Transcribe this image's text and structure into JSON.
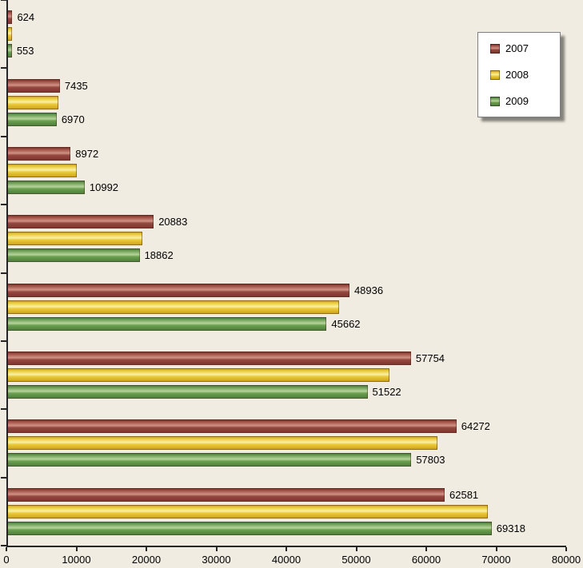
{
  "chart_data": {
    "type": "bar",
    "orientation": "horizontal",
    "grouped": true,
    "title": "",
    "xlabel": "",
    "ylabel": "",
    "xlim": [
      0,
      80000
    ],
    "x_ticks": [
      0,
      10000,
      20000,
      30000,
      40000,
      50000,
      60000,
      70000,
      80000
    ],
    "grid": false,
    "legend_position": "top-right",
    "categories": [
      "",
      "",
      "",
      "",
      "",
      "",
      "",
      ""
    ],
    "series": [
      {
        "name": "2007",
        "color": "#9a4a41",
        "labels_shown": true,
        "values": [
          624,
          7435,
          8972,
          20883,
          48936,
          57754,
          64272,
          62581
        ]
      },
      {
        "name": "2008",
        "color": "#eecc3c",
        "labels_shown": false,
        "note": "no data labels shown in chart; values estimated from bar lengths",
        "values": [
          580,
          7200,
          9800,
          19300,
          47500,
          54700,
          61500,
          68800
        ]
      },
      {
        "name": "2009",
        "color": "#6aa04f",
        "labels_shown": true,
        "values": [
          553,
          6970,
          10992,
          18862,
          45662,
          51522,
          57803,
          69318
        ]
      }
    ]
  },
  "legend": {
    "items": [
      {
        "label": "2007",
        "swatch": "swatch-2007"
      },
      {
        "label": "2008",
        "swatch": "swatch-2008"
      },
      {
        "label": "2009",
        "swatch": "swatch-2009"
      }
    ]
  },
  "colors": {
    "background": "#f0ece1",
    "axis": "#262626",
    "series_2007": "#9a4a41",
    "series_2008": "#eecc3c",
    "series_2009": "#6aa04f",
    "legend_background": "#ffffff"
  }
}
